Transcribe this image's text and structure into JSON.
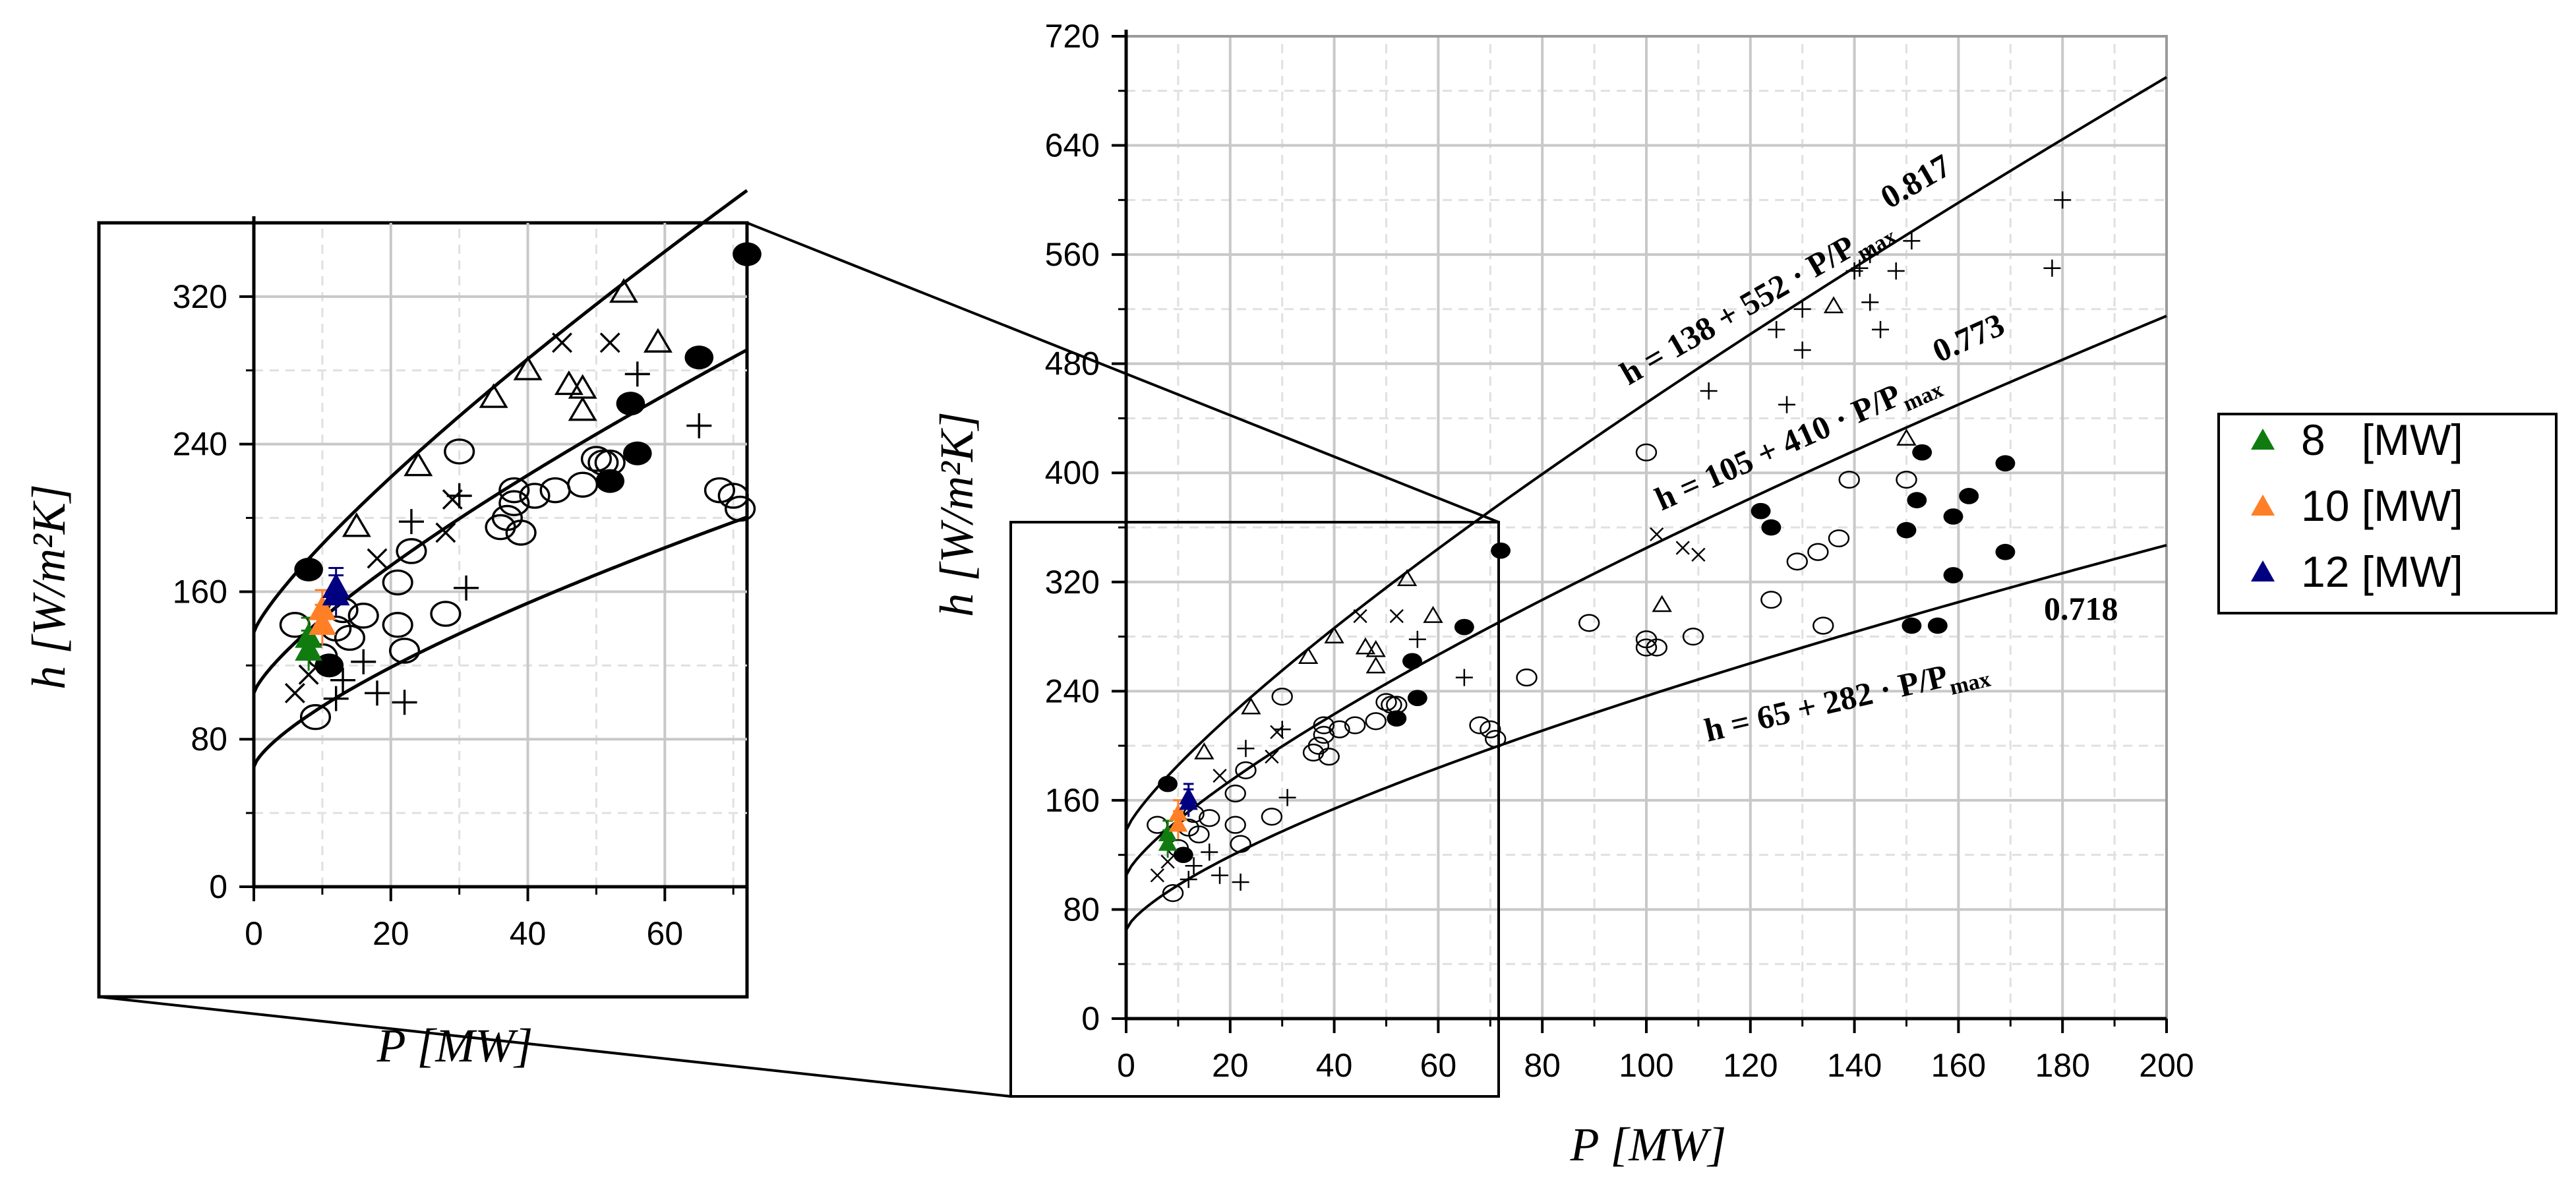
{
  "chart_data": [
    {
      "id": "main",
      "type": "scatter",
      "xlabel": "P [MW]",
      "ylabel": "h [W/m²K]",
      "xlim": [
        0,
        200
      ],
      "ylim": [
        0,
        720
      ],
      "x_ticks": [
        0,
        20,
        40,
        60,
        80,
        100,
        120,
        140,
        160,
        180,
        200
      ],
      "y_ticks": [
        0,
        80,
        160,
        240,
        320,
        400,
        480,
        560,
        640,
        720
      ],
      "grid": true,
      "fit_curves": [
        {
          "name": "upper",
          "a": 138,
          "b": 552,
          "n": 0.817,
          "pmax": 200,
          "label": {
            "main": "h = 138 + 552 · P/P",
            "sub": "max",
            "exp": "0.817"
          }
        },
        {
          "name": "middle",
          "a": 105,
          "b": 410,
          "n": 0.773,
          "pmax": 200,
          "label": {
            "main": "h = 105 + 410 · P/P",
            "sub": "max",
            "exp": "0.773"
          }
        },
        {
          "name": "lower",
          "a": 65,
          "b": 282,
          "n": 0.718,
          "pmax": 200,
          "label": {
            "main": "h = 65 + 282 · P/P",
            "sub": "max",
            "exp": "0.718"
          }
        }
      ],
      "series": [
        {
          "marker": "open-triangle",
          "points": [
            [
              15,
              195
            ],
            [
              24,
              228
            ],
            [
              35,
              265
            ],
            [
              40,
              280
            ],
            [
              46,
              272
            ],
            [
              48,
              270
            ],
            [
              48,
              258
            ],
            [
              54,
              322
            ],
            [
              59,
              295
            ],
            [
              103,
              303
            ],
            [
              136,
              522
            ],
            [
              150,
              425
            ]
          ]
        },
        {
          "marker": "plus",
          "points": [
            [
              12,
              102
            ],
            [
              13,
              112
            ],
            [
              16,
              122
            ],
            [
              18,
              105
            ],
            [
              22,
              100
            ],
            [
              23,
              198
            ],
            [
              30,
              212
            ],
            [
              31,
              162
            ],
            [
              56,
              278
            ],
            [
              65,
              250
            ],
            [
              112,
              460
            ],
            [
              125,
              505
            ],
            [
              127,
              450
            ],
            [
              130,
              520
            ],
            [
              130,
              490
            ],
            [
              140,
              548
            ],
            [
              141,
              550
            ],
            [
              143,
              525
            ],
            [
              143,
              560
            ],
            [
              145,
              505
            ],
            [
              148,
              548
            ],
            [
              151,
              570
            ],
            [
              178,
              550
            ],
            [
              180,
              600
            ]
          ]
        },
        {
          "marker": "x",
          "points": [
            [
              6,
              105
            ],
            [
              8,
              115
            ],
            [
              18,
              178
            ],
            [
              28,
              192
            ],
            [
              29,
              210
            ],
            [
              45,
              295
            ],
            [
              52,
              295
            ],
            [
              102,
              355
            ],
            [
              107,
              345
            ],
            [
              110,
              340
            ]
          ]
        },
        {
          "marker": "open-circle",
          "points": [
            [
              6,
              142
            ],
            [
              9,
              92
            ],
            [
              10,
              125
            ],
            [
              12,
              140
            ],
            [
              13,
              150
            ],
            [
              14,
              135
            ],
            [
              16,
              147
            ],
            [
              21,
              165
            ],
            [
              21,
              142
            ],
            [
              22,
              128
            ],
            [
              23,
              182
            ],
            [
              28,
              148
            ],
            [
              30,
              236
            ],
            [
              36,
              195
            ],
            [
              37,
              200
            ],
            [
              38,
              215
            ],
            [
              38,
              208
            ],
            [
              39,
              192
            ],
            [
              41,
              212
            ],
            [
              44,
              215
            ],
            [
              48,
              218
            ],
            [
              50,
              232
            ],
            [
              51,
              230
            ],
            [
              52,
              230
            ],
            [
              68,
              215
            ],
            [
              70,
              212
            ],
            [
              71,
              205
            ],
            [
              77,
              250
            ],
            [
              89,
              290
            ],
            [
              100,
              415
            ],
            [
              100,
              278
            ],
            [
              100,
              272
            ],
            [
              102,
              272
            ],
            [
              109,
              280
            ],
            [
              124,
              307
            ],
            [
              129,
              335
            ],
            [
              133,
              342
            ],
            [
              134,
              288
            ],
            [
              137,
              352
            ],
            [
              139,
              395
            ],
            [
              150,
              395
            ]
          ]
        },
        {
          "marker": "filled-circle",
          "points": [
            [
              8,
              172
            ],
            [
              11,
              120
            ],
            [
              52,
              220
            ],
            [
              55,
              262
            ],
            [
              56,
              235
            ],
            [
              65,
              287
            ],
            [
              72,
              343
            ],
            [
              122,
              372
            ],
            [
              124,
              360
            ],
            [
              150,
              358
            ],
            [
              151,
              288
            ],
            [
              152,
              380
            ],
            [
              153,
              415
            ],
            [
              156,
              288
            ],
            [
              159,
              368
            ],
            [
              159,
              325
            ],
            [
              162,
              383
            ],
            [
              169,
              342
            ],
            [
              169,
              407
            ]
          ]
        },
        {
          "marker": "filled-triangle",
          "name": "8   [MW]",
          "color": "#107c10",
          "points": [
            [
              8,
              135
            ],
            [
              8,
              128
            ]
          ]
        },
        {
          "marker": "filled-triangle",
          "name": "10 [MW]",
          "color": "#ff7f27",
          "points": [
            [
              10,
              150
            ],
            [
              10,
              142
            ]
          ]
        },
        {
          "marker": "filled-triangle",
          "name": "12 [MW]",
          "color": "#000080",
          "points": [
            [
              12,
              162
            ],
            [
              12,
              158
            ]
          ]
        }
      ]
    },
    {
      "id": "inset",
      "type": "scatter",
      "xlabel": "P [MW]",
      "ylabel": "h [W/m²K]",
      "xlim": [
        0,
        72
      ],
      "ylim": [
        0,
        360
      ],
      "x_ticks": [
        0,
        20,
        40,
        60
      ],
      "y_ticks": [
        0,
        80,
        160,
        240,
        320
      ],
      "grid": true,
      "note": "magnified view of main chart region P 0–72 MW"
    }
  ],
  "legend": {
    "entries": [
      {
        "label": "8   [MW]",
        "color": "#107c10"
      },
      {
        "label": "10 [MW]",
        "color": "#ff7f27"
      },
      {
        "label": "12 [MW]",
        "color": "#000080"
      }
    ]
  },
  "colors": {
    "grid": "#c8c8c8",
    "grid_minor": "#e0e0e0",
    "ink": "#000000"
  }
}
